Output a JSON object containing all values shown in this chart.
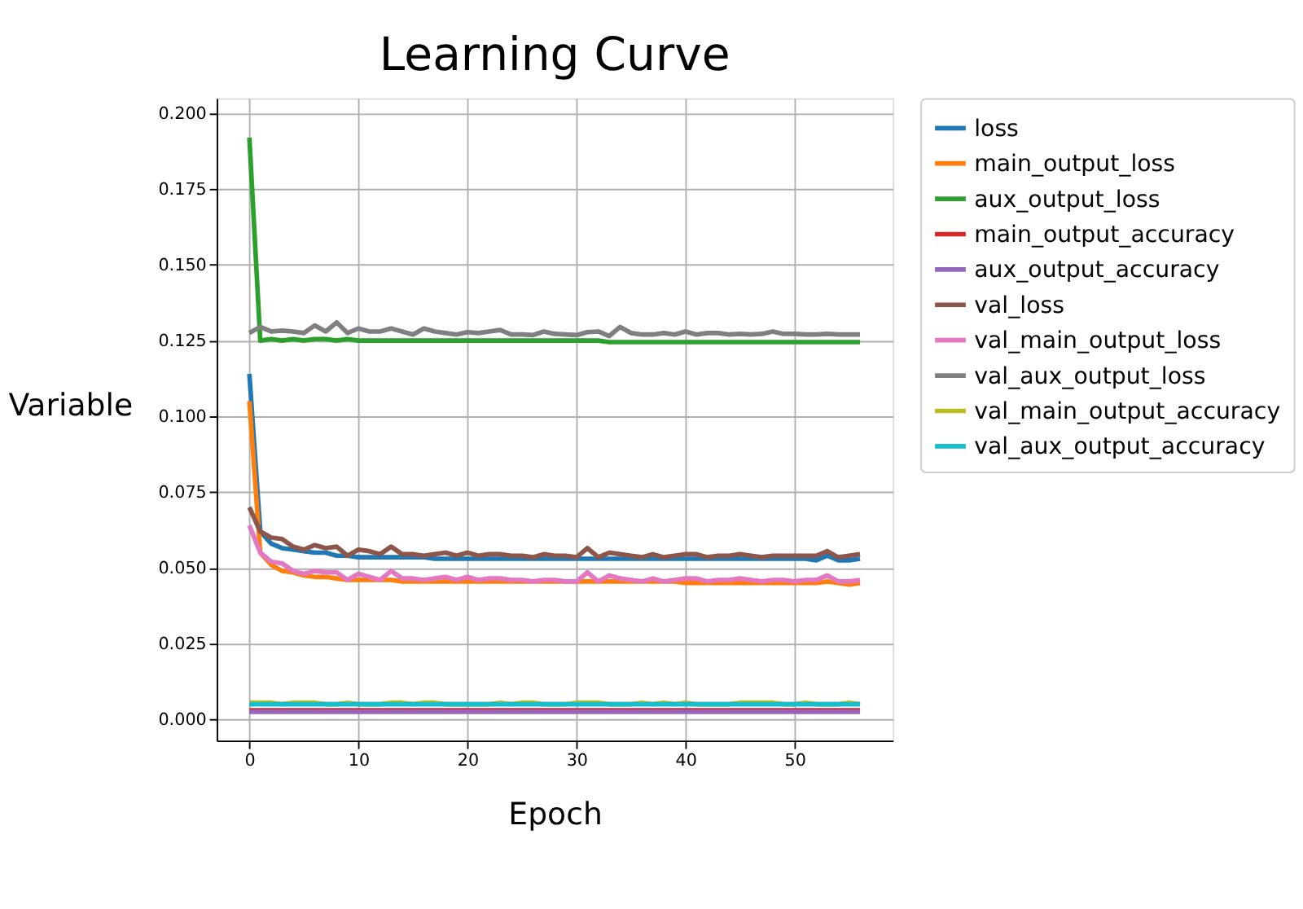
{
  "chart_data": {
    "type": "line",
    "title": "Learning Curve",
    "xlabel": "Epoch",
    "ylabel": "Variable",
    "x": [
      0,
      1,
      2,
      3,
      4,
      5,
      6,
      7,
      8,
      9,
      10,
      11,
      12,
      13,
      14,
      15,
      16,
      17,
      18,
      19,
      20,
      21,
      22,
      23,
      24,
      25,
      26,
      27,
      28,
      29,
      30,
      31,
      32,
      33,
      34,
      35,
      36,
      37,
      38,
      39,
      40,
      41,
      42,
      43,
      44,
      45,
      46,
      47,
      48,
      49,
      50,
      51,
      52,
      53,
      54,
      55,
      56
    ],
    "xlim": [
      -3,
      59
    ],
    "xticks": [
      0,
      10,
      20,
      30,
      40,
      50
    ],
    "ylim": [
      -0.007,
      0.205
    ],
    "yticks": [
      {
        "value": 0,
        "label": "0.000"
      },
      0.025,
      {
        "value": 0.05,
        "label": "0.050"
      },
      0.075,
      {
        "value": 0.1,
        "label": "0.100"
      },
      0.125,
      {
        "value": 0.15,
        "label": "0.150"
      },
      0.175,
      {
        "value": 0.2,
        "label": "0.200"
      }
    ],
    "grid": true,
    "legend": "top right",
    "line_style": "solid",
    "marker": "none",
    "series": [
      {
        "name": "loss",
        "color": "#1f77b4",
        "values": [
          0.114,
          0.062,
          0.058,
          0.0565,
          0.056,
          0.0555,
          0.055,
          0.055,
          0.054,
          0.054,
          0.0535,
          0.0535,
          0.0535,
          0.0535,
          0.0535,
          0.0535,
          0.0535,
          0.053,
          0.053,
          0.053,
          0.053,
          0.053,
          0.053,
          0.053,
          0.053,
          0.053,
          0.053,
          0.053,
          0.053,
          0.053,
          0.053,
          0.053,
          0.053,
          0.053,
          0.053,
          0.053,
          0.053,
          0.053,
          0.053,
          0.053,
          0.053,
          0.053,
          0.053,
          0.053,
          0.053,
          0.053,
          0.053,
          0.053,
          0.053,
          0.053,
          0.053,
          0.053,
          0.0525,
          0.054,
          0.0525,
          0.0525,
          0.053
        ]
      },
      {
        "name": "main_output_loss",
        "color": "#ff7f0e",
        "values": [
          0.105,
          0.055,
          0.051,
          0.049,
          0.0485,
          0.0475,
          0.047,
          0.047,
          0.0465,
          0.046,
          0.046,
          0.046,
          0.046,
          0.046,
          0.0455,
          0.0455,
          0.0455,
          0.0455,
          0.0455,
          0.0455,
          0.0455,
          0.0455,
          0.0455,
          0.0455,
          0.0455,
          0.0455,
          0.0455,
          0.0455,
          0.0455,
          0.0455,
          0.0455,
          0.0455,
          0.0455,
          0.0455,
          0.0455,
          0.0455,
          0.0455,
          0.0455,
          0.0455,
          0.0455,
          0.045,
          0.045,
          0.045,
          0.045,
          0.045,
          0.045,
          0.045,
          0.045,
          0.045,
          0.045,
          0.045,
          0.045,
          0.045,
          0.0455,
          0.045,
          0.0445,
          0.045
        ]
      },
      {
        "name": "aux_output_loss",
        "color": "#2ca02c",
        "values": [
          0.192,
          0.125,
          0.1255,
          0.125,
          0.1255,
          0.125,
          0.1255,
          0.1255,
          0.125,
          0.1255,
          0.125,
          0.125,
          0.125,
          0.125,
          0.125,
          0.125,
          0.125,
          0.125,
          0.125,
          0.125,
          0.125,
          0.125,
          0.125,
          0.125,
          0.125,
          0.125,
          0.125,
          0.125,
          0.125,
          0.125,
          0.125,
          0.125,
          0.125,
          0.1245,
          0.1245,
          0.1245,
          0.1245,
          0.1245,
          0.1245,
          0.1245,
          0.1245,
          0.1245,
          0.1245,
          0.1245,
          0.1245,
          0.1245,
          0.1245,
          0.1245,
          0.1245,
          0.1245,
          0.1245,
          0.1245,
          0.1245,
          0.1245,
          0.1245,
          0.1245,
          0.1245
        ]
      },
      {
        "name": "main_output_accuracy",
        "color": "#d62728",
        "values": [
          0.003,
          0.003,
          0.003,
          0.003,
          0.003,
          0.003,
          0.003,
          0.003,
          0.003,
          0.003,
          0.003,
          0.003,
          0.003,
          0.003,
          0.003,
          0.003,
          0.003,
          0.003,
          0.003,
          0.003,
          0.003,
          0.003,
          0.003,
          0.003,
          0.003,
          0.003,
          0.003,
          0.003,
          0.003,
          0.003,
          0.003,
          0.003,
          0.003,
          0.003,
          0.003,
          0.003,
          0.003,
          0.003,
          0.003,
          0.003,
          0.003,
          0.003,
          0.003,
          0.003,
          0.003,
          0.003,
          0.003,
          0.003,
          0.003,
          0.003,
          0.003,
          0.003,
          0.003,
          0.003,
          0.003,
          0.003,
          0.003
        ]
      },
      {
        "name": "aux_output_accuracy",
        "color": "#9467bd",
        "values": [
          0.0025,
          0.0025,
          0.0025,
          0.0025,
          0.0025,
          0.0025,
          0.0025,
          0.0025,
          0.0025,
          0.0025,
          0.0025,
          0.0025,
          0.0025,
          0.0025,
          0.0025,
          0.0025,
          0.0025,
          0.0025,
          0.0025,
          0.0025,
          0.0025,
          0.0025,
          0.0025,
          0.0025,
          0.0025,
          0.0025,
          0.0025,
          0.0025,
          0.0025,
          0.0025,
          0.0025,
          0.0025,
          0.0025,
          0.0025,
          0.0025,
          0.0025,
          0.0025,
          0.0025,
          0.0025,
          0.0025,
          0.0025,
          0.0025,
          0.0025,
          0.0025,
          0.0025,
          0.0025,
          0.0025,
          0.0025,
          0.0025,
          0.0025,
          0.0025,
          0.0025,
          0.0025,
          0.0025,
          0.0025,
          0.0025,
          0.0025
        ]
      },
      {
        "name": "val_loss",
        "color": "#8c564b",
        "values": [
          0.07,
          0.062,
          0.06,
          0.0595,
          0.057,
          0.056,
          0.0575,
          0.0565,
          0.057,
          0.054,
          0.056,
          0.0555,
          0.0545,
          0.057,
          0.0545,
          0.0545,
          0.054,
          0.0545,
          0.055,
          0.054,
          0.055,
          0.054,
          0.0545,
          0.0545,
          0.054,
          0.054,
          0.0535,
          0.0545,
          0.054,
          0.054,
          0.0535,
          0.0565,
          0.0535,
          0.055,
          0.0545,
          0.054,
          0.0535,
          0.0545,
          0.0535,
          0.054,
          0.0545,
          0.0545,
          0.0535,
          0.054,
          0.054,
          0.0545,
          0.054,
          0.0535,
          0.054,
          0.054,
          0.054,
          0.054,
          0.054,
          0.0555,
          0.0535,
          0.054,
          0.0545
        ]
      },
      {
        "name": "val_main_output_loss",
        "color": "#e377c2",
        "values": [
          0.064,
          0.055,
          0.052,
          0.0515,
          0.049,
          0.048,
          0.049,
          0.0485,
          0.0485,
          0.046,
          0.048,
          0.047,
          0.046,
          0.049,
          0.0465,
          0.0465,
          0.046,
          0.0465,
          0.047,
          0.046,
          0.047,
          0.046,
          0.0465,
          0.0465,
          0.046,
          0.046,
          0.0455,
          0.046,
          0.046,
          0.0455,
          0.0455,
          0.0485,
          0.0455,
          0.0475,
          0.0465,
          0.046,
          0.0455,
          0.0465,
          0.0455,
          0.046,
          0.0465,
          0.0465,
          0.0455,
          0.046,
          0.046,
          0.0465,
          0.046,
          0.0455,
          0.046,
          0.046,
          0.0455,
          0.046,
          0.046,
          0.0475,
          0.0455,
          0.0455,
          0.046
        ]
      },
      {
        "name": "val_aux_output_loss",
        "color": "#7f7f7f",
        "values": [
          0.1275,
          0.1295,
          0.128,
          0.1283,
          0.128,
          0.1275,
          0.13,
          0.128,
          0.131,
          0.1275,
          0.129,
          0.128,
          0.128,
          0.129,
          0.128,
          0.127,
          0.129,
          0.128,
          0.1275,
          0.127,
          0.1278,
          0.1275,
          0.128,
          0.1285,
          0.127,
          0.127,
          0.1268,
          0.128,
          0.1272,
          0.127,
          0.1268,
          0.1278,
          0.128,
          0.1265,
          0.1295,
          0.1275,
          0.127,
          0.127,
          0.1275,
          0.127,
          0.128,
          0.127,
          0.1275,
          0.1275,
          0.127,
          0.1272,
          0.127,
          0.1272,
          0.128,
          0.1272,
          0.1272,
          0.127,
          0.127,
          0.1272,
          0.127,
          0.127,
          0.127
        ]
      },
      {
        "name": "val_main_output_accuracy",
        "color": "#bcbd22",
        "values": [
          0.0055,
          0.0055,
          0.0055,
          0.005,
          0.0055,
          0.0055,
          0.0055,
          0.005,
          0.005,
          0.0055,
          0.005,
          0.005,
          0.005,
          0.0055,
          0.0055,
          0.005,
          0.0055,
          0.0055,
          0.005,
          0.005,
          0.005,
          0.005,
          0.005,
          0.0055,
          0.005,
          0.0055,
          0.0055,
          0.005,
          0.005,
          0.005,
          0.0055,
          0.0055,
          0.0055,
          0.005,
          0.005,
          0.005,
          0.0055,
          0.005,
          0.0055,
          0.005,
          0.0055,
          0.005,
          0.005,
          0.005,
          0.005,
          0.0055,
          0.0055,
          0.0055,
          0.0055,
          0.005,
          0.005,
          0.0055,
          0.005,
          0.005,
          0.005,
          0.0055,
          0.005
        ]
      },
      {
        "name": "val_aux_output_accuracy",
        "color": "#17becf",
        "values": [
          0.005,
          0.005,
          0.005,
          0.005,
          0.005,
          0.005,
          0.005,
          0.005,
          0.005,
          0.005,
          0.005,
          0.005,
          0.005,
          0.005,
          0.005,
          0.005,
          0.005,
          0.005,
          0.005,
          0.005,
          0.005,
          0.005,
          0.005,
          0.005,
          0.005,
          0.005,
          0.005,
          0.005,
          0.005,
          0.005,
          0.005,
          0.005,
          0.005,
          0.005,
          0.005,
          0.005,
          0.005,
          0.005,
          0.005,
          0.005,
          0.005,
          0.005,
          0.005,
          0.005,
          0.005,
          0.005,
          0.005,
          0.005,
          0.005,
          0.005,
          0.005,
          0.005,
          0.005,
          0.005,
          0.005,
          0.005,
          0.005
        ]
      }
    ]
  }
}
